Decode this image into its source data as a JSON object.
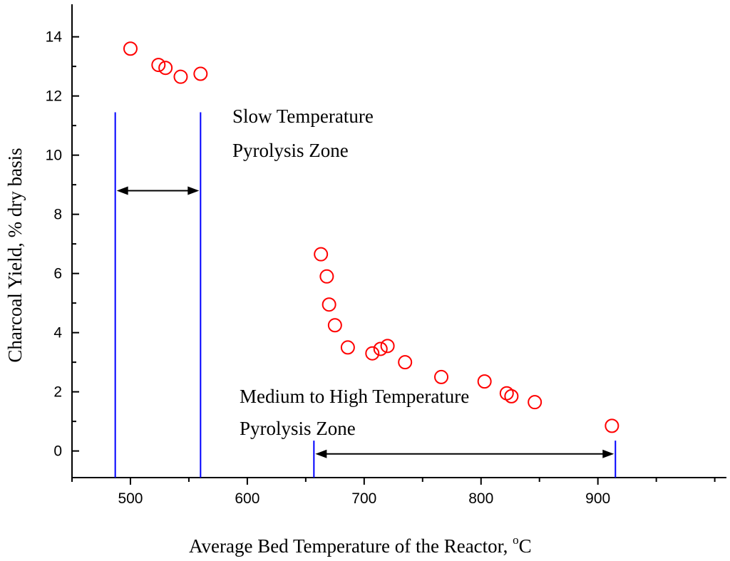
{
  "chart_data": {
    "type": "scatter",
    "title": "",
    "xlabel": "Average Bed Temperature of the Reactor, ",
    "xlabel_unit_sup": "o",
    "xlabel_unit": "C",
    "ylabel": "Charcoal Yield, % dry basis",
    "xlim": [
      450,
      1010
    ],
    "ylim": [
      -0.9,
      15.1
    ],
    "x_ticks": [
      500,
      600,
      700,
      800,
      900
    ],
    "y_ticks": [
      0,
      2,
      4,
      6,
      8,
      10,
      12,
      14
    ],
    "grid": false,
    "legend": "none",
    "series": [
      {
        "name": "Charcoal Yield",
        "marker": "open-circle",
        "color": "#ff0000",
        "points": [
          {
            "x": 500,
            "y": 13.6
          },
          {
            "x": 524,
            "y": 13.05
          },
          {
            "x": 530,
            "y": 12.95
          },
          {
            "x": 543,
            "y": 12.65
          },
          {
            "x": 560,
            "y": 12.75
          },
          {
            "x": 663,
            "y": 6.65
          },
          {
            "x": 668,
            "y": 5.9
          },
          {
            "x": 670,
            "y": 4.95
          },
          {
            "x": 675,
            "y": 4.25
          },
          {
            "x": 686,
            "y": 3.5
          },
          {
            "x": 707,
            "y": 3.3
          },
          {
            "x": 714,
            "y": 3.45
          },
          {
            "x": 720,
            "y": 3.55
          },
          {
            "x": 735,
            "y": 3.0
          },
          {
            "x": 766,
            "y": 2.5
          },
          {
            "x": 803,
            "y": 2.35
          },
          {
            "x": 822,
            "y": 1.95
          },
          {
            "x": 826,
            "y": 1.85
          },
          {
            "x": 846,
            "y": 1.65
          },
          {
            "x": 912,
            "y": 0.85
          }
        ]
      }
    ],
    "zones": [
      {
        "name": "slow",
        "label_lines": [
          "Slow Temperature",
          "Pyrolysis Zone"
        ],
        "x_start": 487,
        "x_end": 560,
        "line_top_y": 11.45,
        "arrow_y": 8.8,
        "line_color": "#0000ff"
      },
      {
        "name": "medium-high",
        "label_lines": [
          "Medium to High Temperature",
          "Pyrolysis Zone"
        ],
        "x_start": 657,
        "x_end": 915,
        "line_top_y": 0.35,
        "arrow_y": -0.1,
        "line_color": "#0000ff"
      }
    ]
  }
}
